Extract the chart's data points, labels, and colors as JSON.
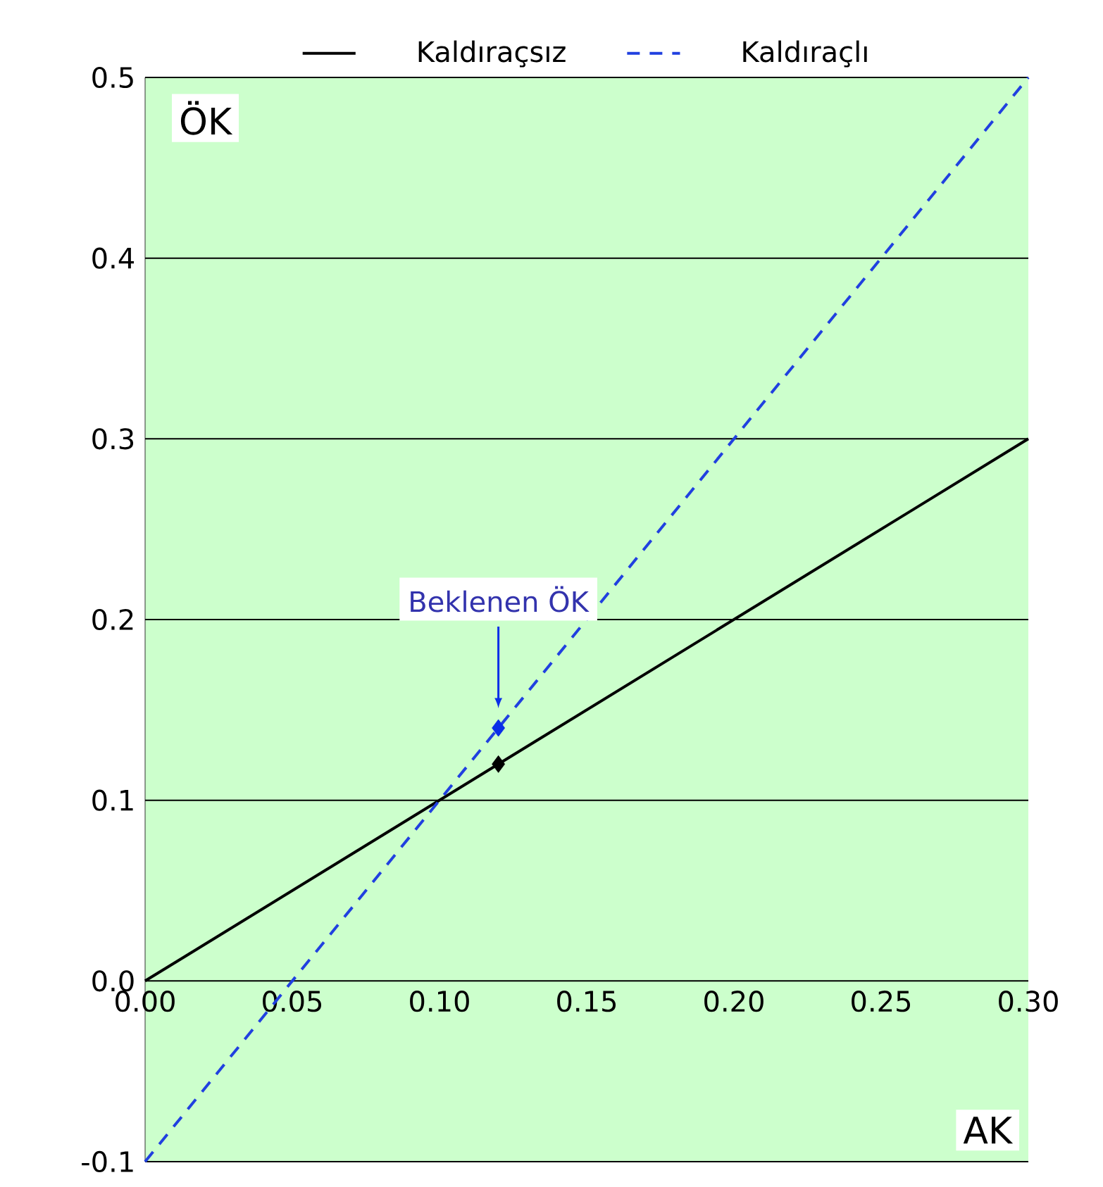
{
  "chart_data": {
    "type": "line",
    "xlabel": "AK",
    "ylabel": "ÖK",
    "xlim": [
      0,
      0.3
    ],
    "ylim": [
      -0.1,
      0.5
    ],
    "xticks": [
      {
        "value": 0,
        "label": "0.00"
      },
      {
        "value": 0.05,
        "label": "0.05"
      },
      {
        "value": 0.1,
        "label": "0.10"
      },
      {
        "value": 0.15,
        "label": "0.15"
      },
      {
        "value": 0.2,
        "label": "0.20"
      },
      {
        "value": 0.25,
        "label": "0.25"
      },
      {
        "value": 0.3,
        "label": "0.30"
      }
    ],
    "yticks": [
      {
        "value": -0.1,
        "label": "-0.1"
      },
      {
        "value": 0,
        "label": "0.0"
      },
      {
        "value": 0.1,
        "label": "0.1"
      },
      {
        "value": 0.2,
        "label": "0.2"
      },
      {
        "value": 0.3,
        "label": "0.3"
      },
      {
        "value": 0.4,
        "label": "0.4"
      },
      {
        "value": 0.5,
        "label": "0.5"
      }
    ],
    "grid": "y",
    "legend": "top",
    "series": [
      {
        "name": "Kaldıraçsız",
        "color": "#000000",
        "x": [
          0,
          0.3
        ],
        "values": [
          0,
          0.3
        ],
        "line_style": "solid"
      },
      {
        "name": "Kaldıraçlı",
        "color": "#2040e0",
        "x": [
          0,
          0.3
        ],
        "values": [
          -0.1,
          0.5
        ],
        "line_style": "dashed"
      },
      {
        "type": "scatter",
        "color": "#000000",
        "x": [
          0.12
        ],
        "values": [
          0.12
        ],
        "marker": "diamond"
      },
      {
        "type": "scatter",
        "color": "#0a2ee8",
        "x": [
          0.12
        ],
        "values": [
          0.14
        ],
        "marker": "diamond"
      }
    ],
    "annotations": [
      "Beklenen ÖK"
    ]
  }
}
